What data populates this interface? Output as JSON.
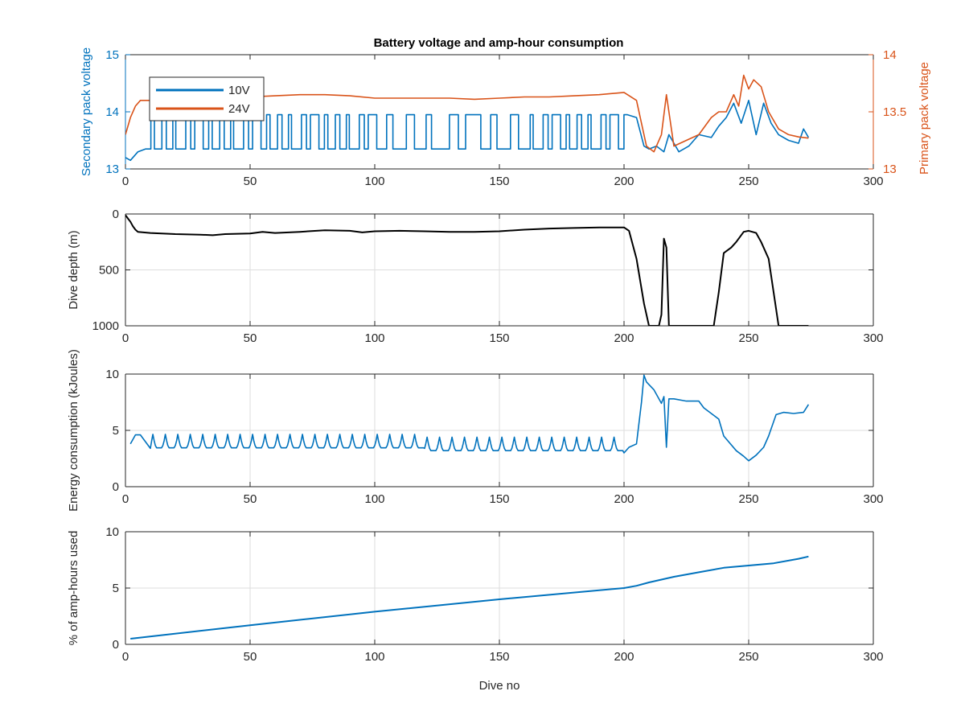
{
  "title": "Battery voltage and amp-hour consumption",
  "colors": {
    "blue": "#0072BD",
    "orange": "#D95319",
    "black": "#000000",
    "grid": "#dedede",
    "axis": "#262626"
  },
  "chart_data": [
    {
      "type": "line",
      "title": "Battery voltage and amp-hour consumption",
      "xlabel": "",
      "ylabel": "Secondary pack voltage",
      "ylabel_right": "Primary pack voltage",
      "xlim": [
        0,
        300
      ],
      "ylim": [
        13,
        15
      ],
      "ylim_right": [
        13,
        14
      ],
      "xticks": [
        0,
        50,
        100,
        150,
        200,
        250,
        300
      ],
      "yticks": [
        13,
        14,
        15
      ],
      "yticks_right": [
        13,
        13.5,
        14
      ],
      "grid": false,
      "legend": {
        "placement": "top-left",
        "entries": [
          "10V",
          "24V"
        ]
      },
      "series": [
        {
          "name": "10V",
          "axis": "left",
          "x": [
            0,
            2,
            5,
            10,
            15,
            20,
            25,
            30,
            35,
            40,
            45,
            50,
            55,
            60,
            65,
            70,
            75,
            80,
            85,
            90,
            95,
            100,
            105,
            110,
            115,
            120,
            125,
            130,
            135,
            140,
            145,
            150,
            155,
            160,
            165,
            170,
            175,
            180,
            185,
            190,
            195,
            200,
            205,
            208,
            210,
            213,
            216,
            218,
            222,
            226,
            230,
            235,
            238,
            241,
            244,
            247,
            250,
            253,
            256,
            259,
            262,
            266,
            270,
            272,
            274
          ],
          "y": [
            13.2,
            13.15,
            13.3,
            13.3,
            13.4,
            13.4,
            13.4,
            13.4,
            13.4,
            13.4,
            13.4,
            13.4,
            13.4,
            13.4,
            13.4,
            13.4,
            13.4,
            13.35,
            13.35,
            13.35,
            13.35,
            13.35,
            13.35,
            13.35,
            13.35,
            13.35,
            13.35,
            13.35,
            13.35,
            13.35,
            13.35,
            13.35,
            13.35,
            13.35,
            13.35,
            13.35,
            13.35,
            13.35,
            13.35,
            13.95,
            13.95,
            13.95,
            13.9,
            13.4,
            13.35,
            13.4,
            13.3,
            13.6,
            13.3,
            13.4,
            13.6,
            13.55,
            13.75,
            13.9,
            14.15,
            13.8,
            14.2,
            13.6,
            14.15,
            13.8,
            13.6,
            13.5,
            13.45,
            13.7,
            13.55
          ],
          "oscillation": {
            "x_range": [
              8,
              200
            ],
            "high": 13.95,
            "low": 13.35,
            "note": "rapid switching between high and low levels"
          }
        },
        {
          "name": "24V",
          "axis": "right",
          "x": [
            0,
            2,
            4,
            6,
            8,
            10,
            12,
            20,
            30,
            40,
            50,
            60,
            70,
            80,
            90,
            100,
            110,
            120,
            130,
            140,
            150,
            160,
            170,
            180,
            190,
            200,
            205,
            207,
            209,
            212,
            215,
            217,
            220,
            225,
            230,
            235,
            238,
            241,
            244,
            246,
            248,
            250,
            252,
            255,
            258,
            262,
            266,
            270,
            274
          ],
          "y": [
            13.3,
            13.45,
            13.55,
            13.6,
            13.6,
            13.6,
            13.55,
            13.6,
            13.61,
            13.62,
            13.63,
            13.64,
            13.65,
            13.65,
            13.64,
            13.62,
            13.62,
            13.62,
            13.62,
            13.61,
            13.62,
            13.63,
            13.63,
            13.64,
            13.65,
            13.67,
            13.6,
            13.4,
            13.2,
            13.15,
            13.3,
            13.65,
            13.2,
            13.25,
            13.3,
            13.45,
            13.5,
            13.5,
            13.65,
            13.55,
            13.82,
            13.7,
            13.78,
            13.72,
            13.5,
            13.35,
            13.3,
            13.28,
            13.27
          ]
        }
      ]
    },
    {
      "type": "line",
      "xlabel": "",
      "ylabel": "Dive depth (m)",
      "xlim": [
        0,
        300
      ],
      "ylim": [
        0,
        1000
      ],
      "y_reversed": true,
      "xticks": [
        0,
        50,
        100,
        150,
        200,
        250,
        300
      ],
      "yticks": [
        0,
        500,
        1000
      ],
      "grid": true,
      "series": [
        {
          "x": [
            0,
            1,
            2,
            3,
            4,
            5,
            10,
            20,
            30,
            35,
            40,
            50,
            55,
            60,
            70,
            80,
            90,
            95,
            100,
            110,
            120,
            130,
            140,
            150,
            160,
            170,
            180,
            190,
            200,
            202,
            205,
            208,
            210,
            212,
            214,
            215,
            216,
            217,
            218,
            219,
            220,
            230,
            236,
            238,
            240,
            243,
            245,
            248,
            250,
            253,
            255,
            258,
            260,
            262,
            270,
            274
          ],
          "y": [
            10,
            40,
            70,
            110,
            140,
            160,
            170,
            180,
            185,
            190,
            180,
            175,
            160,
            170,
            160,
            145,
            150,
            165,
            155,
            150,
            155,
            160,
            160,
            155,
            140,
            130,
            125,
            120,
            120,
            150,
            400,
            800,
            1000,
            1000,
            1000,
            900,
            220,
            300,
            1000,
            1000,
            1000,
            1000,
            1000,
            700,
            350,
            300,
            250,
            160,
            150,
            170,
            250,
            400,
            700,
            1000,
            1000,
            1000
          ]
        }
      ]
    },
    {
      "type": "line",
      "xlabel": "",
      "ylabel": "Energy consumption (kJoules)",
      "xlim": [
        0,
        300
      ],
      "ylim": [
        0,
        10
      ],
      "xticks": [
        0,
        50,
        100,
        150,
        200,
        250,
        300
      ],
      "yticks": [
        0,
        5,
        10
      ],
      "grid": true,
      "series": [
        {
          "x": [
            2,
            4,
            6,
            8,
            10,
            200,
            202,
            205,
            207,
            208,
            209,
            212,
            215,
            216,
            217,
            218,
            220,
            225,
            230,
            232,
            235,
            238,
            240,
            245,
            248,
            250,
            253,
            256,
            258,
            261,
            264,
            268,
            272,
            274
          ],
          "y": [
            3.8,
            4.6,
            4.6,
            4.0,
            3.4,
            3.0,
            3.5,
            3.8,
            7.5,
            9.9,
            9.3,
            8.6,
            7.4,
            8.0,
            3.5,
            7.8,
            7.8,
            7.6,
            7.6,
            7.0,
            6.5,
            6.0,
            4.5,
            3.2,
            2.7,
            2.3,
            2.8,
            3.5,
            4.5,
            6.4,
            6.6,
            6.5,
            6.6,
            7.3
          ],
          "oscillation": {
            "x_range": [
              10,
              200
            ],
            "peak": 4.5,
            "base": 3.3,
            "period": 5
          }
        }
      ]
    },
    {
      "type": "line",
      "xlabel": "Dive no",
      "ylabel": "% of amp-hours used",
      "xlim": [
        0,
        300
      ],
      "ylim": [
        0,
        10
      ],
      "xticks": [
        0,
        50,
        100,
        150,
        200,
        250,
        300
      ],
      "yticks": [
        0,
        5,
        10
      ],
      "grid": true,
      "series": [
        {
          "x": [
            2,
            50,
            100,
            150,
            200,
            205,
            210,
            220,
            230,
            240,
            250,
            260,
            270,
            274
          ],
          "y": [
            0.5,
            1.7,
            2.9,
            4.0,
            5.0,
            5.2,
            5.5,
            6.0,
            6.4,
            6.8,
            7.0,
            7.2,
            7.6,
            7.8
          ]
        }
      ]
    }
  ]
}
